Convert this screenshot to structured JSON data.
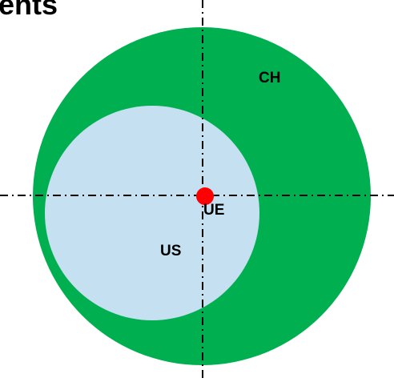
{
  "title": "ents",
  "labels": {
    "ch": "CH",
    "us": "US",
    "ue": "UE"
  },
  "colors": {
    "ch_fill": "#00b050",
    "us_fill": "#c5e0f1",
    "ue_fill": "#ff0000",
    "axis": "#000000"
  }
}
